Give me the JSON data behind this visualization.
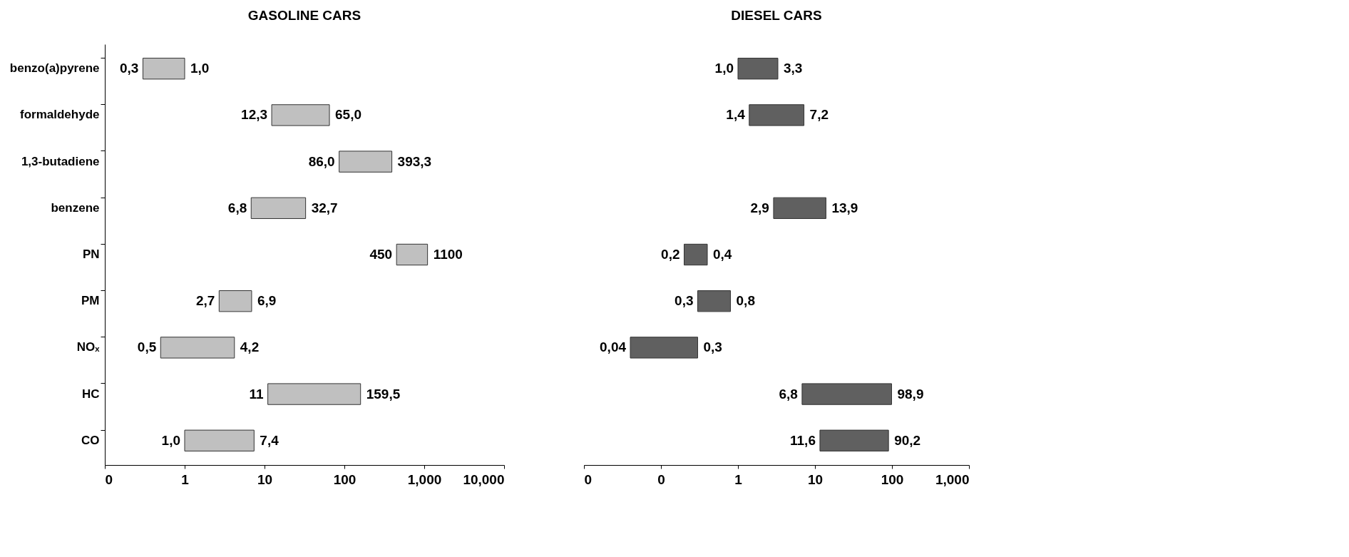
{
  "chart_data": [
    {
      "type": "bar",
      "orientation": "horizontal",
      "log": "x",
      "title": "GASOLINE CARS",
      "categories": [
        "benzo(a)pyrene",
        "formaldehyde",
        "1,3-butadiene",
        "benzene",
        "PN",
        "PM",
        "NOₓ",
        "HC",
        "CO"
      ],
      "base": [
        0.3,
        12.3,
        86.0,
        6.8,
        450,
        2.7,
        0.5,
        11,
        1.0
      ],
      "values": [
        0.7,
        52.7,
        307.3,
        25.9,
        650,
        4.2,
        3.7,
        148.5,
        6.4
      ],
      "value_labels": [
        "1,0",
        "65,0",
        "393,3",
        "32,7",
        "1100",
        "6,9",
        "4,2",
        "159,5",
        "7,4"
      ],
      "color": "#c0c0c0",
      "xlim": [
        0.1,
        10000
      ],
      "xticks": [
        {
          "value": 0.1,
          "label": "0"
        },
        1,
        10,
        100,
        {
          "value": 1000,
          "label": "1,000"
        },
        {
          "value": 10000,
          "label": "10,000"
        }
      ],
      "annotations": [
        {
          "text": "0,3",
          "x": 0.3,
          "y": "benzo(a)pyrene"
        },
        {
          "text": "12,3",
          "x": 12.3,
          "y": "formaldehyde"
        },
        {
          "text": "86,0",
          "x": 86.0,
          "y": "1,3-butadiene"
        },
        {
          "text": "6,8",
          "x": 6.8,
          "y": "benzene"
        },
        {
          "text": "450",
          "x": 450,
          "y": "PN"
        },
        {
          "text": "2,7",
          "x": 2.7,
          "y": "PM"
        },
        {
          "text": "0,5",
          "x": 0.5,
          "y": "NOₓ"
        },
        {
          "text": "11",
          "x": 11,
          "y": "HC"
        },
        {
          "text": "1,0",
          "x": 1.0,
          "y": "CO"
        }
      ]
    },
    {
      "type": "bar",
      "orientation": "horizontal",
      "log": "x",
      "title": "DIESEL CARS",
      "tick_labels": "x",
      "categories": [
        "benzo(a)pyrene",
        "formaldehyde",
        "1,3-butadiene",
        "benzene",
        "PN",
        "PM",
        "NOₓ",
        "HC",
        "CO"
      ],
      "base": [
        1.0,
        1.4,
        null,
        2.9,
        0.2,
        0.3,
        0.04,
        6.8,
        11.6
      ],
      "values": [
        2.3,
        5.8,
        null,
        11.0,
        0.2,
        0.5,
        0.26,
        92.1,
        78.6
      ],
      "value_labels": [
        "3,3",
        "7,2",
        null,
        "13,9",
        "0,4",
        "0,8",
        "0,3",
        "98,9",
        "90,2"
      ],
      "color": "#606060",
      "xlim": [
        0.01,
        1000
      ],
      "xticks": [
        {
          "value": 0.01,
          "label": "0"
        },
        {
          "value": 0.1,
          "label": "0"
        },
        1,
        10,
        100,
        {
          "value": 1000,
          "label": "1,000"
        }
      ],
      "annotations": [
        {
          "text": "1,0",
          "x": 1.0,
          "y": "benzo(a)pyrene"
        },
        {
          "text": "1,4",
          "x": 1.4,
          "y": "formaldehyde"
        },
        {
          "text": "2,9",
          "x": 2.9,
          "y": "benzene"
        },
        {
          "text": "0,2",
          "x": 0.2,
          "y": "PN"
        },
        {
          "text": "0,3",
          "x": 0.3,
          "y": "PM"
        },
        {
          "text": "0,04",
          "x": 0.04,
          "y": "NOₓ"
        },
        {
          "text": "6,8",
          "x": 6.8,
          "y": "HC"
        },
        {
          "text": "11,6",
          "x": 11.6,
          "y": "CO"
        }
      ]
    }
  ]
}
